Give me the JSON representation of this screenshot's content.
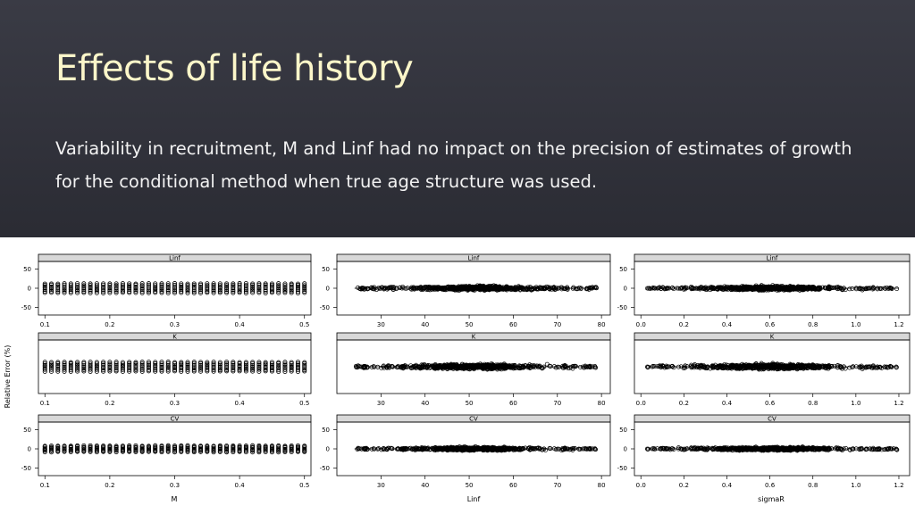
{
  "slide": {
    "title": "Effects of life history",
    "body": "Variability in recruitment, M and Linf had no impact on the precision of estimates of growth for the conditional method when true age structure was used."
  },
  "figure": {
    "y_axis_label": "Relative Error (%)",
    "colors": {
      "points": "#000000",
      "strip_fill": "#d8d8d8",
      "panel_border": "#000000"
    },
    "y_ticks": [
      50,
      0,
      -50
    ],
    "row_strips": [
      "Linf",
      "K",
      "CV"
    ],
    "columns": [
      {
        "id": "M",
        "xlabel": "M",
        "x_ticks": [
          "0.1",
          "0.2",
          "0.3",
          "0.4",
          "0.5"
        ],
        "xlim": [
          0.09,
          0.51
        ]
      },
      {
        "id": "Linf",
        "xlabel": "Linf",
        "x_ticks": [
          "30",
          "40",
          "50",
          "60",
          "70",
          "80"
        ],
        "xlim": [
          20,
          82
        ]
      },
      {
        "id": "sigmaR",
        "xlabel": "sigmaR",
        "x_ticks": [
          "0.0",
          "0.2",
          "0.4",
          "0.6",
          "0.8",
          "1.0",
          "1.2"
        ],
        "xlim": [
          -0.03,
          1.25
        ]
      }
    ]
  },
  "chart_data": [
    {
      "type": "scatter",
      "strip": "Linf",
      "xlabel": "",
      "ylabel": "Relative Error (%)",
      "ylim": [
        -70,
        70
      ],
      "x_range": [
        0.1,
        0.5
      ],
      "y_range": [
        -12,
        12
      ],
      "x_ticks": [
        0.1,
        0.2,
        0.3,
        0.4,
        0.5
      ],
      "y_ticks": [
        -50,
        0,
        50
      ]
    },
    {
      "type": "scatter",
      "strip": "Linf",
      "xlabel": "",
      "ylim": [
        -70,
        70
      ],
      "x_range": [
        24,
        79
      ],
      "y_range": [
        -10,
        10
      ],
      "x_ticks": [
        30,
        40,
        50,
        60,
        70,
        80
      ],
      "y_ticks": [
        -50,
        0,
        50
      ]
    },
    {
      "type": "scatter",
      "strip": "Linf",
      "xlabel": "",
      "ylim": [
        -70,
        70
      ],
      "x_range": [
        0.03,
        1.2
      ],
      "y_range": [
        -10,
        10
      ],
      "x_ticks": [
        0.0,
        0.2,
        0.4,
        0.6,
        0.8,
        1.0,
        1.2
      ],
      "y_ticks": [
        -50,
        0,
        50
      ]
    },
    {
      "type": "scatter",
      "strip": "K",
      "xlabel": "",
      "ylabel": "Relative Error (%)",
      "x_range": [
        0.1,
        0.5
      ],
      "x_ticks": [
        0.1,
        0.2,
        0.3,
        0.4,
        0.5
      ]
    },
    {
      "type": "scatter",
      "strip": "K",
      "xlabel": "",
      "x_range": [
        24,
        79
      ],
      "x_ticks": [
        30,
        40,
        50,
        60,
        70,
        80
      ]
    },
    {
      "type": "scatter",
      "strip": "K",
      "xlabel": "",
      "x_range": [
        0.03,
        1.2
      ],
      "x_ticks": [
        0.0,
        0.2,
        0.4,
        0.6,
        0.8,
        1.0,
        1.2
      ]
    },
    {
      "type": "scatter",
      "strip": "CV",
      "xlabel": "M",
      "ylabel": "Relative Error (%)",
      "ylim": [
        -70,
        70
      ],
      "x_range": [
        0.1,
        0.5
      ],
      "y_range": [
        -8,
        8
      ],
      "x_ticks": [
        0.1,
        0.2,
        0.3,
        0.4,
        0.5
      ],
      "y_ticks": [
        -50,
        0,
        50
      ]
    },
    {
      "type": "scatter",
      "strip": "CV",
      "xlabel": "Linf",
      "ylim": [
        -70,
        70
      ],
      "x_range": [
        24,
        79
      ],
      "y_range": [
        -8,
        8
      ],
      "x_ticks": [
        30,
        40,
        50,
        60,
        70,
        80
      ],
      "y_ticks": [
        -50,
        0,
        50
      ]
    },
    {
      "type": "scatter",
      "strip": "CV",
      "xlabel": "sigmaR",
      "ylim": [
        -70,
        70
      ],
      "x_range": [
        0.03,
        1.2
      ],
      "y_range": [
        -8,
        8
      ],
      "x_ticks": [
        0.0,
        0.2,
        0.4,
        0.6,
        0.8,
        1.0,
        1.2
      ],
      "y_ticks": [
        -50,
        0,
        50
      ]
    }
  ]
}
